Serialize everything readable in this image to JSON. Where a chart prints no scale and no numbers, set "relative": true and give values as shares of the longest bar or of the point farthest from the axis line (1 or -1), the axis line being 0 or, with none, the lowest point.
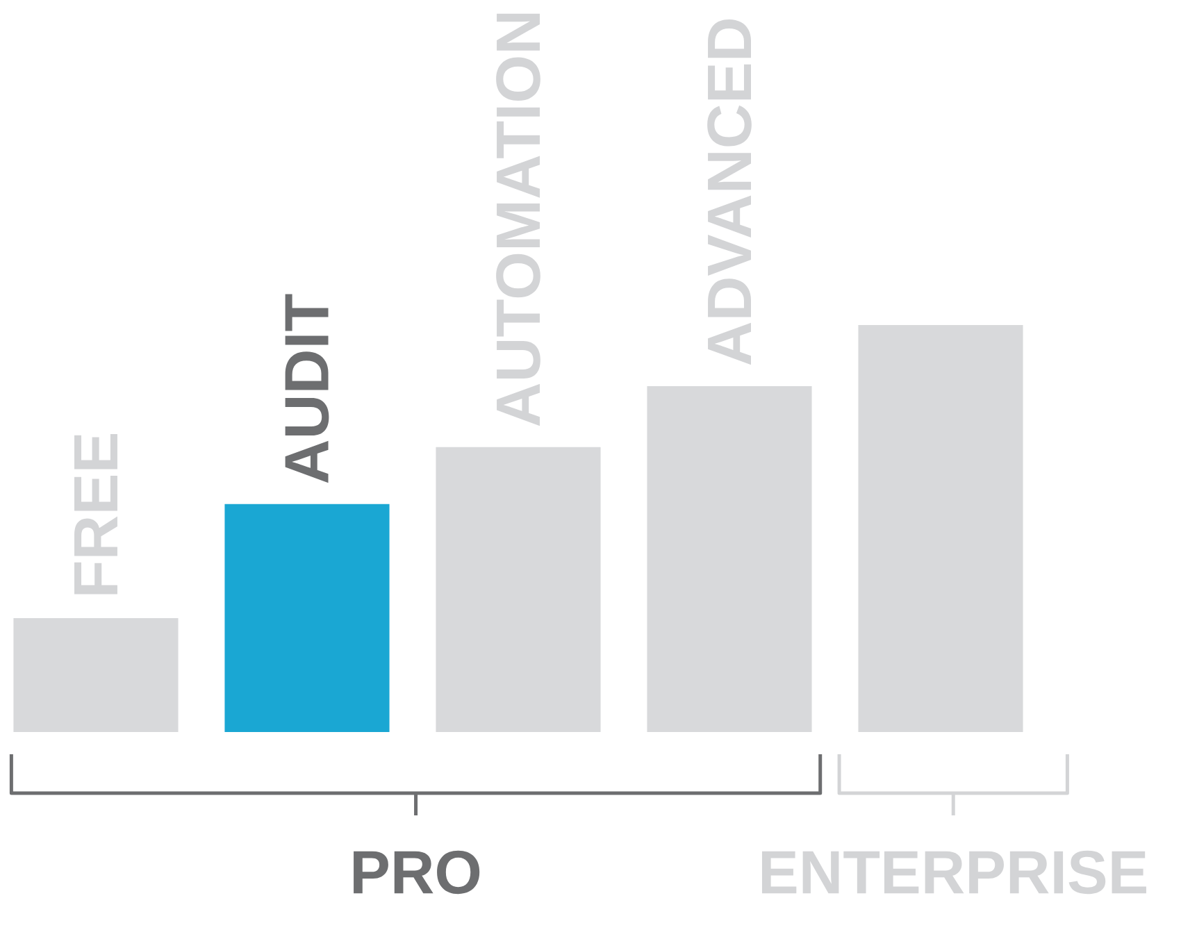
{
  "chart_data": {
    "type": "bar",
    "relative": true,
    "categories": [
      "FREE",
      "AUDIT",
      "AUTOMATION",
      "ADVANCED",
      null
    ],
    "values": [
      0.28,
      0.56,
      0.7,
      0.85,
      1
    ],
    "colors": [
      "#d8d9db",
      "#1aa7d3",
      "#d8d9db",
      "#d8d9db",
      "#d8d9db"
    ],
    "annotations": [
      "PRO",
      "ENTERPRISE"
    ]
  }
}
